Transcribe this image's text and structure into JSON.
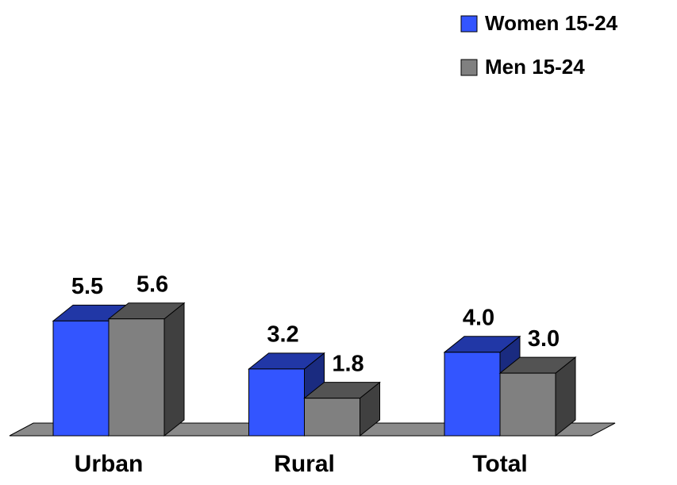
{
  "chart_data": {
    "type": "bar3d",
    "categories": [
      "Urban",
      "Rural",
      "Total"
    ],
    "series": [
      {
        "name": "Women 15-24",
        "color": "#3355ff",
        "values": [
          5.5,
          3.2,
          4.0
        ],
        "value_labels": [
          "5.5",
          "3.2",
          "4.0"
        ]
      },
      {
        "name": "Men 15-24",
        "color": "#808080",
        "values": [
          5.6,
          1.8,
          3.0
        ],
        "value_labels": [
          "5.6",
          "1.8",
          "3.0"
        ]
      }
    ],
    "legend": "top-right"
  }
}
